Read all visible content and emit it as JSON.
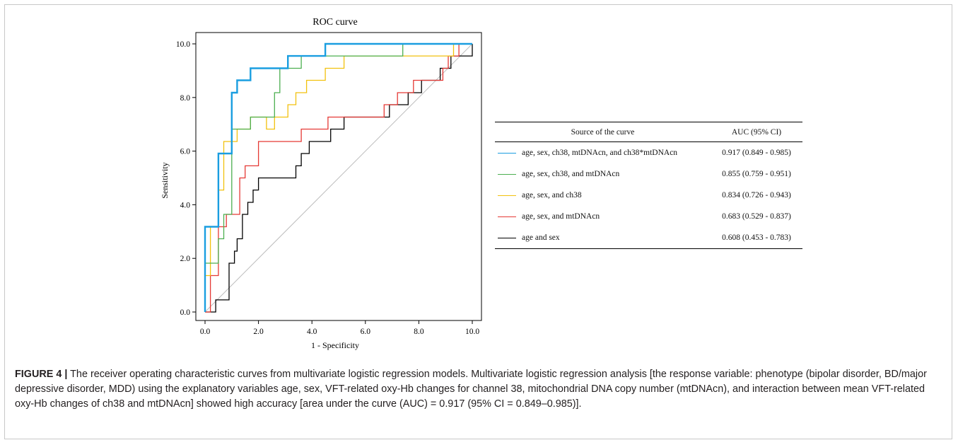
{
  "chart_data": {
    "type": "line",
    "title": "ROC curve",
    "xlabel": "1 - Specificity",
    "ylabel": "Sensitivity",
    "xlim": [
      0,
      10
    ],
    "ylim": [
      0,
      10
    ],
    "xticks": [
      "0.0",
      "2.0",
      "4.0",
      "6.0",
      "8.0",
      "10.0"
    ],
    "yticks": [
      "0.0",
      "2.0",
      "4.0",
      "6.0",
      "8.0",
      "10.0"
    ],
    "grid": false,
    "reference_line": true,
    "series": [
      {
        "name": "age, sex, ch38, mtDNAcn, and ch38*mtDNAcn",
        "color": "#1a9ee0",
        "points": [
          [
            0,
            0
          ],
          [
            0,
            3.18
          ],
          [
            0.5,
            3.18
          ],
          [
            0.5,
            5.91
          ],
          [
            1,
            5.91
          ],
          [
            1,
            8.18
          ],
          [
            1.2,
            8.18
          ],
          [
            1.2,
            8.64
          ],
          [
            1.7,
            8.64
          ],
          [
            1.7,
            9.09
          ],
          [
            3.1,
            9.09
          ],
          [
            3.1,
            9.55
          ],
          [
            4.5,
            9.55
          ],
          [
            4.5,
            10
          ],
          [
            10,
            10
          ]
        ]
      },
      {
        "name": "age, sex, ch38, and mtDNAcn",
        "color": "#4caf50",
        "points": [
          [
            0,
            0
          ],
          [
            0,
            1.82
          ],
          [
            0.5,
            1.82
          ],
          [
            0.5,
            2.73
          ],
          [
            0.7,
            2.73
          ],
          [
            0.7,
            3.64
          ],
          [
            1,
            3.64
          ],
          [
            1,
            6.82
          ],
          [
            1.7,
            6.82
          ],
          [
            1.7,
            7.27
          ],
          [
            2.6,
            7.27
          ],
          [
            2.6,
            8.18
          ],
          [
            2.8,
            8.18
          ],
          [
            2.8,
            9.09
          ],
          [
            3.6,
            9.09
          ],
          [
            3.6,
            9.55
          ],
          [
            7.4,
            9.55
          ],
          [
            7.4,
            10
          ],
          [
            10,
            10
          ]
        ]
      },
      {
        "name": "age, sex, and ch38",
        "color": "#f2c10e",
        "points": [
          [
            0,
            0
          ],
          [
            0,
            1.36
          ],
          [
            0.2,
            1.36
          ],
          [
            0.2,
            3.18
          ],
          [
            0.5,
            3.18
          ],
          [
            0.5,
            4.55
          ],
          [
            0.7,
            4.55
          ],
          [
            0.7,
            6.36
          ],
          [
            1.2,
            6.36
          ],
          [
            1.2,
            6.82
          ],
          [
            1.7,
            6.82
          ],
          [
            1.7,
            7.27
          ],
          [
            2.3,
            7.27
          ],
          [
            2.3,
            6.82
          ],
          [
            2.6,
            6.82
          ],
          [
            2.6,
            7.27
          ],
          [
            3.1,
            7.27
          ],
          [
            3.1,
            7.73
          ],
          [
            3.4,
            7.73
          ],
          [
            3.4,
            8.18
          ],
          [
            3.8,
            8.18
          ],
          [
            3.8,
            8.64
          ],
          [
            4.5,
            8.64
          ],
          [
            4.5,
            9.09
          ],
          [
            5.2,
            9.09
          ],
          [
            5.2,
            9.55
          ],
          [
            9.3,
            9.55
          ],
          [
            9.3,
            10
          ],
          [
            10,
            10
          ]
        ]
      },
      {
        "name": "age, sex, and mtDNAcn",
        "color": "#e53935",
        "points": [
          [
            0,
            0
          ],
          [
            0.2,
            0
          ],
          [
            0.2,
            1.36
          ],
          [
            0.5,
            1.36
          ],
          [
            0.5,
            3.18
          ],
          [
            0.8,
            3.18
          ],
          [
            0.8,
            3.64
          ],
          [
            1.3,
            3.64
          ],
          [
            1.3,
            5
          ],
          [
            1.5,
            5
          ],
          [
            1.5,
            5.45
          ],
          [
            2,
            5.45
          ],
          [
            2,
            6.36
          ],
          [
            3.6,
            6.36
          ],
          [
            3.6,
            6.82
          ],
          [
            4.6,
            6.82
          ],
          [
            4.6,
            7.27
          ],
          [
            6.7,
            7.27
          ],
          [
            6.7,
            7.73
          ],
          [
            7.2,
            7.73
          ],
          [
            7.2,
            8.18
          ],
          [
            7.8,
            8.18
          ],
          [
            7.8,
            8.64
          ],
          [
            8.9,
            8.64
          ],
          [
            8.9,
            9.09
          ],
          [
            9.1,
            9.09
          ],
          [
            9.1,
            9.55
          ],
          [
            9.5,
            9.55
          ],
          [
            9.5,
            10
          ],
          [
            10,
            10
          ]
        ]
      },
      {
        "name": "age and sex",
        "color": "#000000",
        "points": [
          [
            0,
            0
          ],
          [
            0.4,
            0
          ],
          [
            0.4,
            0.45
          ],
          [
            0.9,
            0.45
          ],
          [
            0.9,
            1.82
          ],
          [
            1.1,
            1.82
          ],
          [
            1.1,
            2.27
          ],
          [
            1.2,
            2.27
          ],
          [
            1.2,
            2.73
          ],
          [
            1.4,
            2.73
          ],
          [
            1.4,
            3.64
          ],
          [
            1.6,
            3.64
          ],
          [
            1.6,
            4.09
          ],
          [
            1.8,
            4.09
          ],
          [
            1.8,
            4.55
          ],
          [
            2,
            4.55
          ],
          [
            2,
            5
          ],
          [
            3.4,
            5
          ],
          [
            3.4,
            5.45
          ],
          [
            3.6,
            5.45
          ],
          [
            3.6,
            5.91
          ],
          [
            3.9,
            5.91
          ],
          [
            3.9,
            6.36
          ],
          [
            4.7,
            6.36
          ],
          [
            4.7,
            6.82
          ],
          [
            5.2,
            6.82
          ],
          [
            5.2,
            7.27
          ],
          [
            6.9,
            7.27
          ],
          [
            6.9,
            7.73
          ],
          [
            7.6,
            7.73
          ],
          [
            7.6,
            8.18
          ],
          [
            8.1,
            8.18
          ],
          [
            8.1,
            8.64
          ],
          [
            8.8,
            8.64
          ],
          [
            8.8,
            9.09
          ],
          [
            9.2,
            9.09
          ],
          [
            9.2,
            9.55
          ],
          [
            10,
            9.55
          ],
          [
            10,
            10
          ]
        ]
      }
    ]
  },
  "table": {
    "header_source": "Source of the curve",
    "header_auc": "AUC (95% CI)",
    "rows": [
      {
        "label": "age, sex, ch38, mtDNAcn, and ch38*mtDNAcn",
        "auc": "0.917 (0.849 - 0.985)",
        "color": "#1a9ee0"
      },
      {
        "label": "age, sex, ch38, and mtDNAcn",
        "auc": "0.855 (0.759 - 0.951)",
        "color": "#4caf50"
      },
      {
        "label": "age, sex, and ch38",
        "auc": "0.834 (0.726 - 0.943)",
        "color": "#f2c10e"
      },
      {
        "label": "age, sex, and mtDNAcn",
        "auc": "0.683 (0.529 - 0.837)",
        "color": "#e53935"
      },
      {
        "label": "age and sex",
        "auc": "0.608 (0.453 - 0.783)",
        "color": "#000000"
      }
    ]
  },
  "caption": {
    "label": "FIGURE 4 |",
    "text": " The receiver operating characteristic curves from multivariate logistic regression models. Multivariate logistic regression analysis [the response variable: phenotype (bipolar disorder, BD/major depressive disorder, MDD) using the explanatory variables age, sex, VFT-related oxy-Hb changes for channel 38, mitochondrial DNA copy number (mtDNAcn), and interaction between mean VFT-related oxy-Hb changes of ch38 and mtDNAcn] showed high accuracy [area under the curve (AUC) = 0.917 (95% CI = 0.849–0.985)]."
  }
}
